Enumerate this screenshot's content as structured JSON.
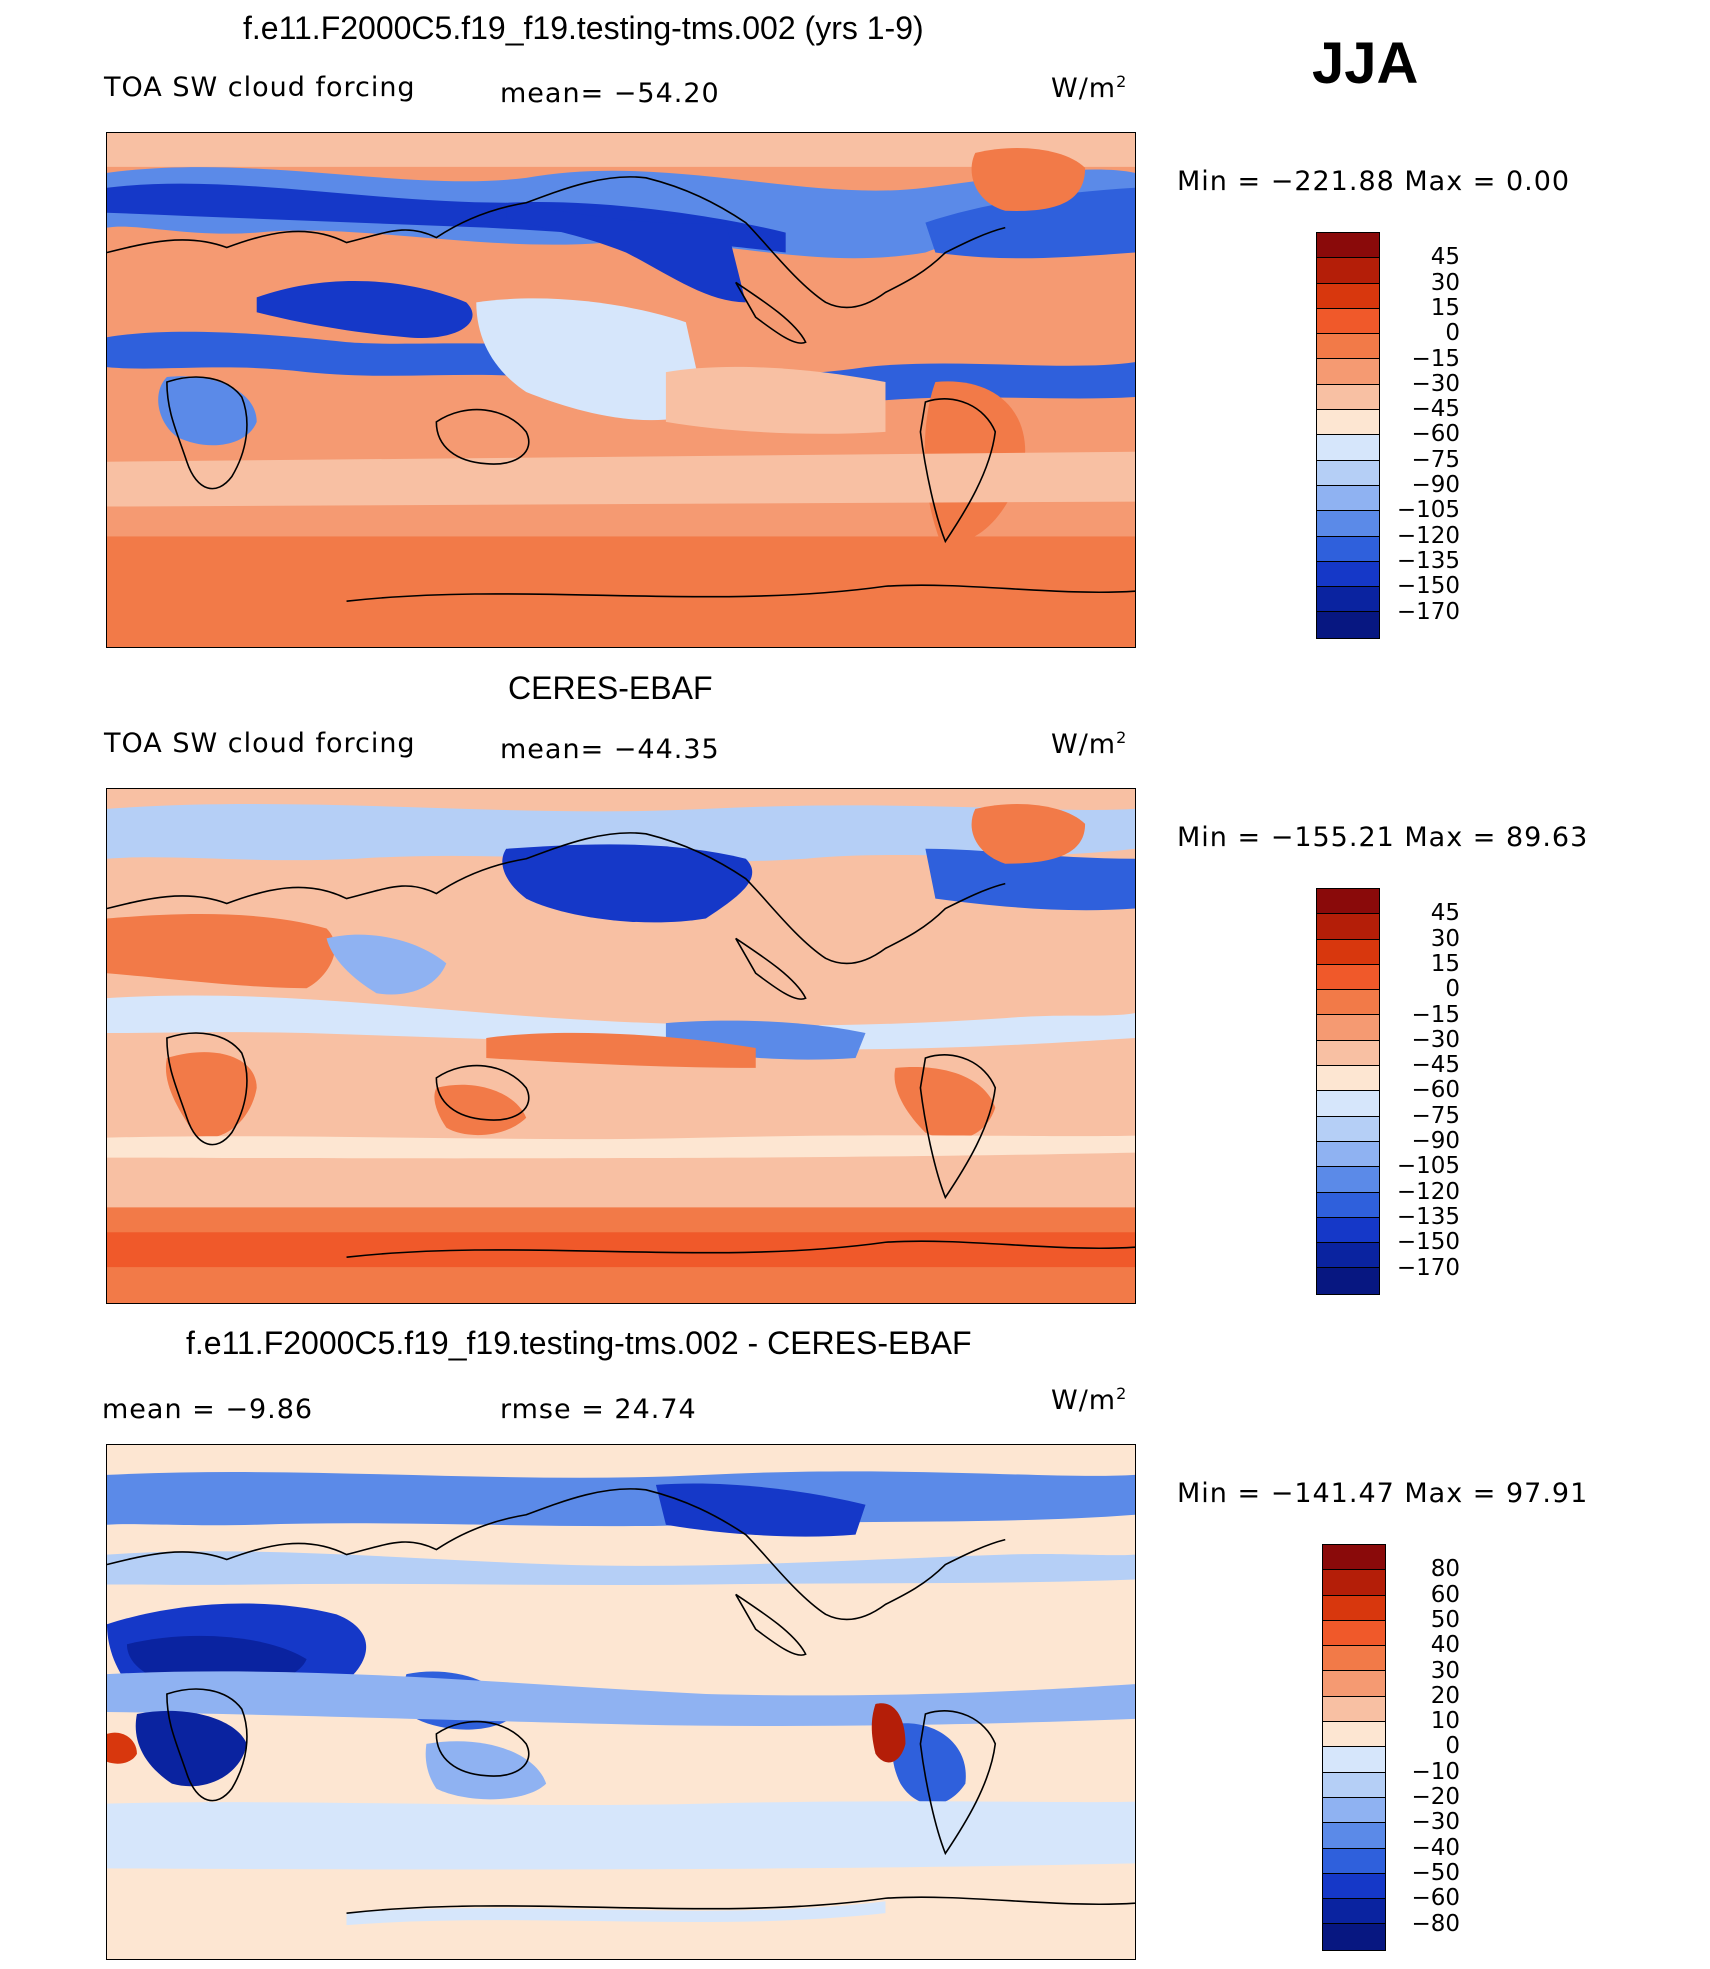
{
  "season": "JJA",
  "units_label": "W/m",
  "units_power": "2",
  "colors": {
    "deep_blue": "#08207f",
    "blue": "#1a47d6",
    "light_blue": "#a9c7f5",
    "pale_blue": "#dfe9fb",
    "pale": "#fbe7d8",
    "salmon": "#f8b89a",
    "orange": "#f0703d",
    "dark_red": "#8a0a0a"
  },
  "panels": [
    {
      "id": "model",
      "title": "f.e11.F2000C5.f19_f19.testing-tms.002 (yrs 1-9)",
      "left_label": "TOA SW cloud forcing",
      "center_label": "mean= −54.20",
      "min_max": "Min  =  −221.88  Max  =     0.00",
      "colorbar_labels": [
        "45",
        "30",
        "15",
        "0",
        "−15",
        "−30",
        "−45",
        "−60",
        "−75",
        "−90",
        "−105",
        "−120",
        "−135",
        "−150",
        "−170"
      ],
      "colorbar_colors": [
        "#8a0a0a",
        "#b41e08",
        "#d8370d",
        "#f0592a",
        "#f27a48",
        "#f59a72",
        "#f8c0a3",
        "#fde6d2",
        "#d6e6fb",
        "#b5cff6",
        "#8fb2f2",
        "#5b8ae8",
        "#2f60dc",
        "#1538c8",
        "#0a23a0",
        "#071781"
      ]
    },
    {
      "id": "obs",
      "title": "CERES-EBAF",
      "left_label": "TOA SW cloud forcing",
      "center_label": "mean= −44.35",
      "min_max": "Min  =  −155.21  Max  =    89.63",
      "colorbar_labels": [
        "45",
        "30",
        "15",
        "0",
        "−15",
        "−30",
        "−45",
        "−60",
        "−75",
        "−90",
        "−105",
        "−120",
        "−135",
        "−150",
        "−170"
      ],
      "colorbar_colors": [
        "#8a0a0a",
        "#b41e08",
        "#d8370d",
        "#f0592a",
        "#f27a48",
        "#f59a72",
        "#f8c0a3",
        "#fde6d2",
        "#d6e6fb",
        "#b5cff6",
        "#8fb2f2",
        "#5b8ae8",
        "#2f60dc",
        "#1538c8",
        "#0a23a0",
        "#071781"
      ]
    },
    {
      "id": "diff",
      "title": "f.e11.F2000C5.f19_f19.testing-tms.002 - CERES-EBAF",
      "left_label": "mean =   −9.86",
      "center_label": "rmse =   24.74",
      "min_max": "Min  =  −141.47  Max  =    97.91",
      "colorbar_labels": [
        "80",
        "60",
        "50",
        "40",
        "30",
        "20",
        "10",
        "0",
        "−10",
        "−20",
        "−30",
        "−40",
        "−50",
        "−60",
        "−80"
      ],
      "colorbar_colors": [
        "#8a0a0a",
        "#b41e08",
        "#d8370d",
        "#f0592a",
        "#f27a48",
        "#f59a72",
        "#f8c0a3",
        "#fde6d2",
        "#d6e6fb",
        "#b5cff6",
        "#8fb2f2",
        "#5b8ae8",
        "#2f60dc",
        "#1538c8",
        "#0a23a0",
        "#071781"
      ]
    }
  ]
}
